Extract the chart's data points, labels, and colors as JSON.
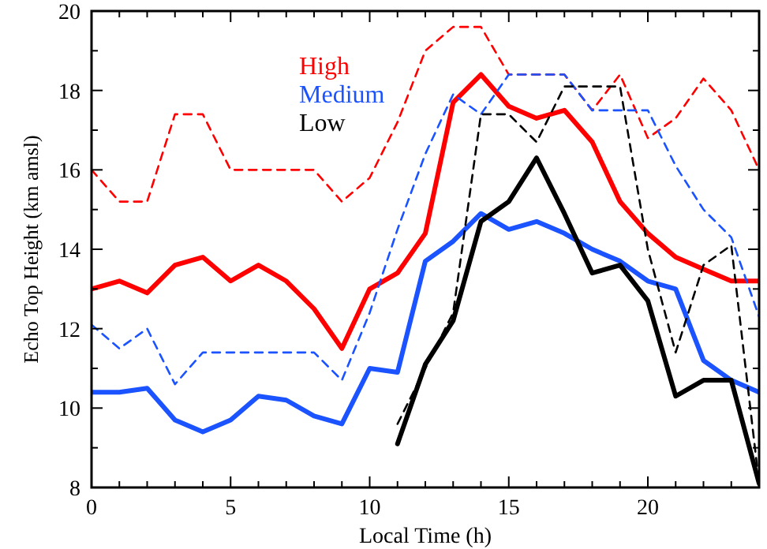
{
  "chart_data": {
    "type": "line",
    "xlabel": "Local Time (h)",
    "ylabel": "Echo Top Height (km amsl)",
    "x": [
      0,
      1,
      2,
      3,
      4,
      5,
      6,
      7,
      8,
      9,
      10,
      11,
      12,
      13,
      14,
      15,
      16,
      17,
      18,
      19,
      20,
      21,
      22,
      23,
      24
    ],
    "xlim": [
      0,
      24
    ],
    "ylim": [
      8,
      20
    ],
    "xticks": [
      0,
      {
        "value": 1,
        "label": null
      },
      {
        "value": 2,
        "label": null
      },
      {
        "value": 3,
        "label": null
      },
      {
        "value": 4,
        "label": null
      },
      5,
      {
        "value": 6,
        "label": null
      },
      {
        "value": 7,
        "label": null
      },
      {
        "value": 8,
        "label": null
      },
      {
        "value": 9,
        "label": null
      },
      10,
      {
        "value": 11,
        "label": null
      },
      {
        "value": 12,
        "label": null
      },
      {
        "value": 13,
        "label": null
      },
      {
        "value": 14,
        "label": null
      },
      15,
      {
        "value": 16,
        "label": null
      },
      {
        "value": 17,
        "label": null
      },
      {
        "value": 18,
        "label": null
      },
      {
        "value": 19,
        "label": null
      },
      20,
      {
        "value": 21,
        "label": null
      },
      {
        "value": 22,
        "label": null
      },
      {
        "value": 23,
        "label": null
      },
      {
        "value": 24,
        "label": null
      }
    ],
    "yticks": [
      8,
      {
        "value": 9,
        "label": null
      },
      10,
      {
        "value": 11,
        "label": null
      },
      12,
      {
        "value": 13,
        "label": null
      },
      14,
      {
        "value": 15,
        "label": null
      },
      16,
      {
        "value": 17,
        "label": null
      },
      18,
      {
        "value": 19,
        "label": null
      },
      20
    ],
    "grid": false,
    "legend": "top",
    "marker": "none",
    "series": [
      {
        "name": "High",
        "color": "#ff0000",
        "line_style": "solid",
        "values": [
          13.0,
          13.2,
          12.9,
          13.6,
          13.8,
          13.2,
          13.6,
          13.2,
          12.5,
          11.5,
          13.0,
          13.4,
          14.4,
          17.7,
          18.4,
          17.6,
          17.3,
          17.5,
          16.7,
          15.2,
          14.4,
          13.8,
          13.5,
          13.2,
          13.2
        ]
      },
      {
        "name": "Medium",
        "color": "#1a53ff",
        "line_style": "solid",
        "values": [
          10.4,
          10.4,
          10.5,
          9.7,
          9.4,
          9.7,
          10.3,
          10.2,
          9.8,
          9.6,
          11.0,
          10.9,
          13.7,
          14.2,
          14.9,
          14.5,
          14.7,
          14.4,
          14.0,
          13.7,
          13.2,
          13.0,
          11.2,
          10.7,
          10.4
        ]
      },
      {
        "name": "Low",
        "color": "#000000",
        "line_style": "solid",
        "values": [
          null,
          null,
          null,
          null,
          null,
          null,
          null,
          null,
          null,
          null,
          null,
          9.1,
          11.1,
          12.2,
          14.7,
          15.2,
          16.3,
          14.9,
          13.4,
          13.6,
          12.7,
          10.3,
          10.7,
          10.7,
          8.1
        ]
      },
      {
        "color": "#ff0000",
        "line_style": "dashed",
        "values": [
          16.0,
          15.2,
          15.2,
          17.4,
          17.4,
          16.0,
          16.0,
          16.0,
          16.0,
          15.2,
          15.8,
          17.2,
          19.0,
          19.6,
          19.6,
          18.4,
          18.4,
          18.4,
          17.5,
          18.4,
          16.8,
          17.3,
          18.3,
          17.5,
          16.0
        ]
      },
      {
        "color": "#1a53ff",
        "line_style": "dashed",
        "values": [
          12.1,
          11.5,
          12.0,
          10.6,
          11.4,
          11.4,
          11.4,
          11.4,
          11.4,
          10.7,
          12.4,
          14.5,
          16.4,
          17.9,
          17.4,
          18.4,
          18.4,
          18.4,
          17.5,
          17.5,
          17.5,
          16.1,
          15.0,
          14.3,
          12.3
        ]
      },
      {
        "color": "#000000",
        "line_style": "dashed",
        "values": [
          null,
          null,
          null,
          null,
          null,
          null,
          null,
          null,
          null,
          null,
          null,
          9.6,
          11.0,
          12.4,
          17.4,
          17.4,
          16.7,
          18.1,
          18.1,
          18.1,
          14.0,
          11.4,
          13.6,
          14.1,
          8.1
        ]
      }
    ]
  }
}
